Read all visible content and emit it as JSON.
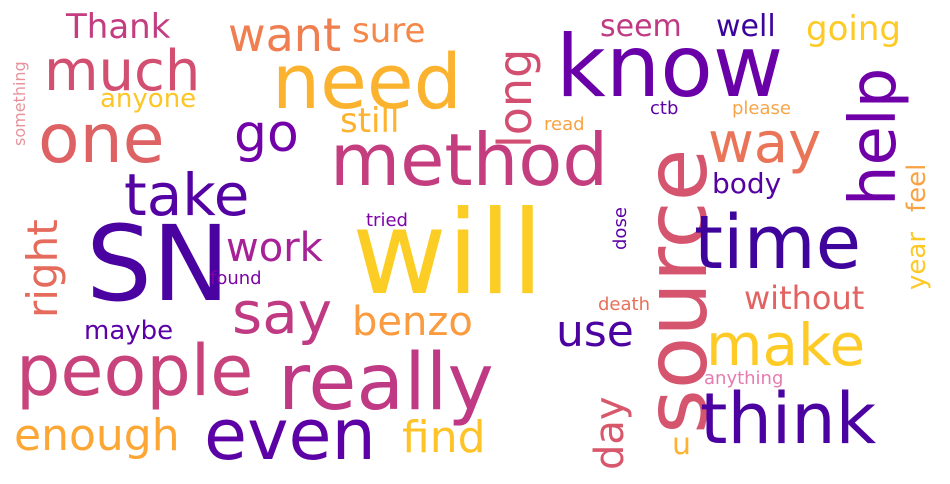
{
  "palette": [
    "#0d0887",
    "#5c01a6",
    "#9c179e",
    "#cc4778",
    "#ed7953",
    "#fdb42f",
    "#f0f921"
  ],
  "words": [
    {
      "text": "will",
      "color": "#fcce25",
      "vertical": false
    },
    {
      "text": "SN",
      "color": "#4a02a0",
      "vertical": false
    },
    {
      "text": "know",
      "color": "#6a00a8",
      "vertical": false
    },
    {
      "text": "source",
      "color": "#d5546e",
      "vertical": true
    },
    {
      "text": "really",
      "color": "#bf3984",
      "vertical": false
    },
    {
      "text": "need",
      "color": "#fbb32f",
      "vertical": false
    },
    {
      "text": "time",
      "color": "#3f049c",
      "vertical": false
    },
    {
      "text": "method",
      "color": "#c43e7f",
      "vertical": false
    },
    {
      "text": "people",
      "color": "#c8437b",
      "vertical": false
    },
    {
      "text": "even",
      "color": "#5c01a6",
      "vertical": false
    },
    {
      "text": "think",
      "color": "#4c02a1",
      "vertical": false
    },
    {
      "text": "one",
      "color": "#de6164",
      "vertical": false
    },
    {
      "text": "much",
      "color": "#d24f71",
      "vertical": false
    },
    {
      "text": "help",
      "color": "#6f00a8",
      "vertical": true
    },
    {
      "text": "take",
      "color": "#5402a3",
      "vertical": false
    },
    {
      "text": "make",
      "color": "#fdca26",
      "vertical": false
    },
    {
      "text": "say",
      "color": "#c03a83",
      "vertical": false
    },
    {
      "text": "way",
      "color": "#ea7457",
      "vertical": false
    },
    {
      "text": "go",
      "color": "#7201a8",
      "vertical": false
    },
    {
      "text": "long",
      "color": "#d24f71",
      "vertical": true
    },
    {
      "text": "want",
      "color": "#ef7e50",
      "vertical": false
    },
    {
      "text": "enough",
      "color": "#fca636",
      "vertical": false
    },
    {
      "text": "find",
      "color": "#fdc328",
      "vertical": false
    },
    {
      "text": "benzo",
      "color": "#f99b3e",
      "vertical": false
    },
    {
      "text": "right",
      "color": "#e56b5d",
      "vertical": true
    },
    {
      "text": "use",
      "color": "#4c02a1",
      "vertical": false
    },
    {
      "text": "work",
      "color": "#a72197",
      "vertical": false
    },
    {
      "text": "day",
      "color": "#d8576b",
      "vertical": true
    },
    {
      "text": "Thank",
      "color": "#c33d80",
      "vertical": false
    },
    {
      "text": "sure",
      "color": "#f48849",
      "vertical": false
    },
    {
      "text": "going",
      "color": "#fdca26",
      "vertical": false
    },
    {
      "text": "well",
      "color": "#3d049b",
      "vertical": false
    },
    {
      "text": "seem",
      "color": "#c03a83",
      "vertical": false
    },
    {
      "text": "still",
      "color": "#fdb32f",
      "vertical": false
    },
    {
      "text": "without",
      "color": "#e16462",
      "vertical": false
    },
    {
      "text": "feel",
      "color": "#f9a242",
      "vertical": true
    },
    {
      "text": "body",
      "color": "#5402a3",
      "vertical": false
    },
    {
      "text": "anyone",
      "color": "#fdc627",
      "vertical": false
    },
    {
      "text": "maybe",
      "color": "#5c01a6",
      "vertical": false
    },
    {
      "text": "year",
      "color": "#fdc926",
      "vertical": true
    },
    {
      "text": "u",
      "color": "#fdb32f",
      "vertical": false
    },
    {
      "text": "found",
      "color": "#7e03a8",
      "vertical": false
    },
    {
      "text": "tried",
      "color": "#7e03a8",
      "vertical": false
    },
    {
      "text": "dose",
      "color": "#5c01a6",
      "vertical": true
    },
    {
      "text": "death",
      "color": "#e86f5a",
      "vertical": false
    },
    {
      "text": "read",
      "color": "#f9a242",
      "vertical": false
    },
    {
      "text": "ctb",
      "color": "#5c01a6",
      "vertical": false
    },
    {
      "text": "please",
      "color": "#f7a54a",
      "vertical": false
    },
    {
      "text": "something",
      "color": "#e7929a",
      "vertical": true
    },
    {
      "text": "anything",
      "color": "#e57bb0",
      "vertical": false
    }
  ]
}
